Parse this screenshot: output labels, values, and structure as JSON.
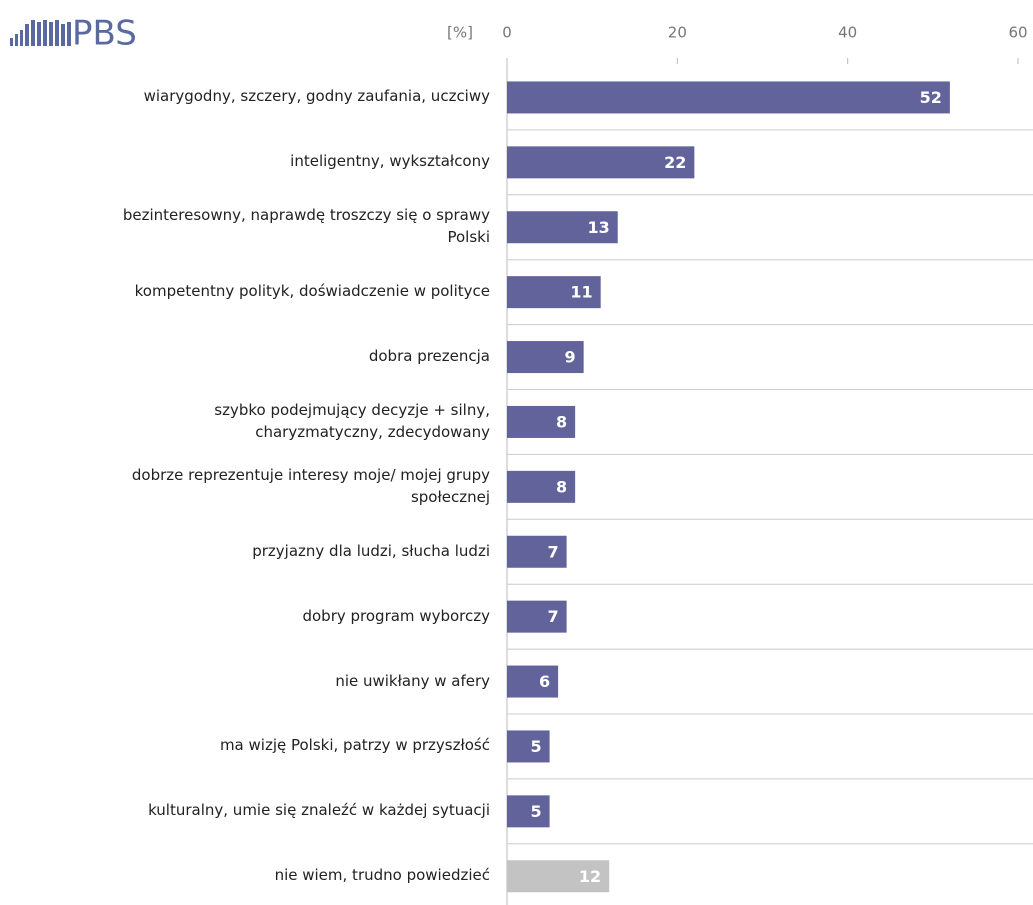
{
  "chart_data": {
    "type": "barh",
    "logo": "PBS",
    "unit_label": "[%]",
    "categories": [
      "wiarygodny, szczery, godny zaufania, uczciwy",
      "inteligentny, wykształcony",
      "bezinteresowny, naprawdę troszczy się o sprawy\nPolski",
      "kompetentny polityk, doświadczenie w polityce",
      "dobra prezencja",
      "szybko podejmujący decyzje + silny,\ncharyzmatyczny, zdecydowany",
      "dobrze reprezentuje interesy moje/ mojej grupy\nspołecznej",
      "przyjazny dla ludzi, słucha ludzi",
      "dobry program wyborczy",
      "nie uwikłany w afery",
      "ma wizję Polski, patrzy w przyszłość",
      "kulturalny, umie się znaleźć w każdej sytuacji",
      "nie wiem, trudno powiedzieć"
    ],
    "values": [
      52,
      22,
      13,
      11,
      9,
      8,
      8,
      7,
      7,
      6,
      5,
      5,
      12
    ],
    "colors": [
      "#62639b",
      "#62639b",
      "#62639b",
      "#62639b",
      "#62639b",
      "#62639b",
      "#62639b",
      "#62639b",
      "#62639b",
      "#62639b",
      "#62639b",
      "#62639b",
      "#c3c3c3"
    ],
    "xlim": [
      0,
      60
    ],
    "xticks": [
      0,
      20,
      40,
      60
    ]
  }
}
